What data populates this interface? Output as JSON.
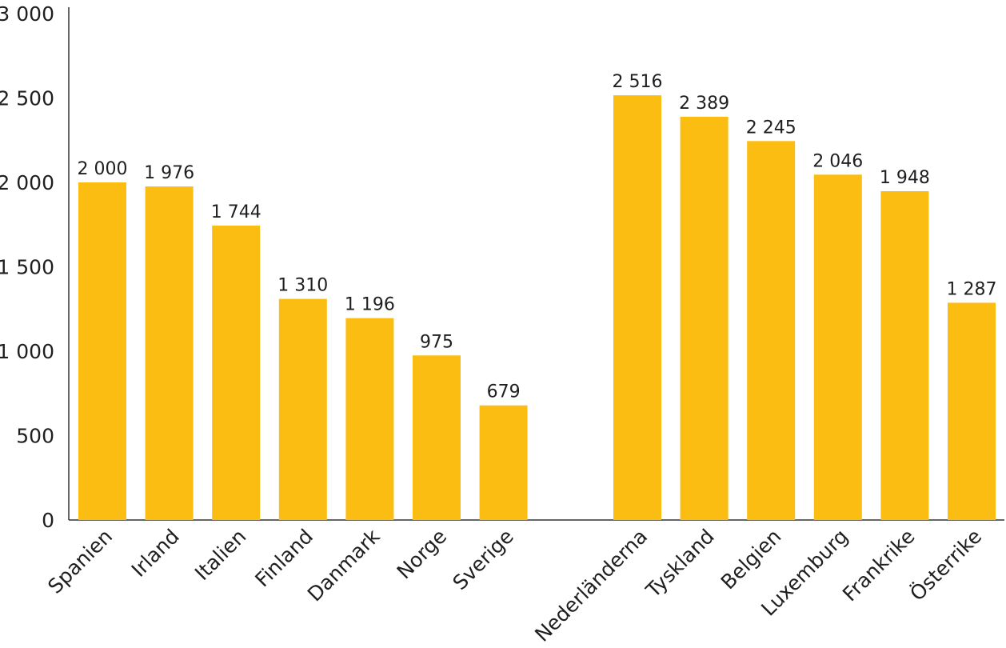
{
  "chart_data": {
    "type": "bar",
    "title": "",
    "xlabel": "",
    "ylabel": "",
    "ylim": [
      0,
      3000
    ],
    "yticks": [
      0,
      500,
      1000,
      1500,
      2000,
      2500,
      3000
    ],
    "ytick_labels": [
      "0",
      "500",
      "1 000",
      "1 500",
      "2 000",
      "2 500",
      "3 000"
    ],
    "grid": false,
    "bar_color": "#FCBD12",
    "groups": [
      {
        "categories": [
          "Spanien",
          "Irland",
          "Italien",
          "Finland",
          "Danmark",
          "Norge",
          "Sverige"
        ],
        "values": [
          2000,
          1976,
          1744,
          1310,
          1196,
          975,
          679
        ],
        "value_labels": [
          "2 000",
          "1 976",
          "1 744",
          "1 310",
          "1 196",
          "975",
          "679"
        ]
      },
      {
        "categories": [
          "Nederländerna",
          "Tyskland",
          "Belgien",
          "Luxemburg",
          "Frankrike",
          "Österrike"
        ],
        "values": [
          2516,
          2389,
          2245,
          2046,
          1948,
          1287
        ],
        "value_labels": [
          "2 516",
          "2 389",
          "2 245",
          "2 046",
          "1 948",
          "1 287"
        ]
      }
    ]
  }
}
